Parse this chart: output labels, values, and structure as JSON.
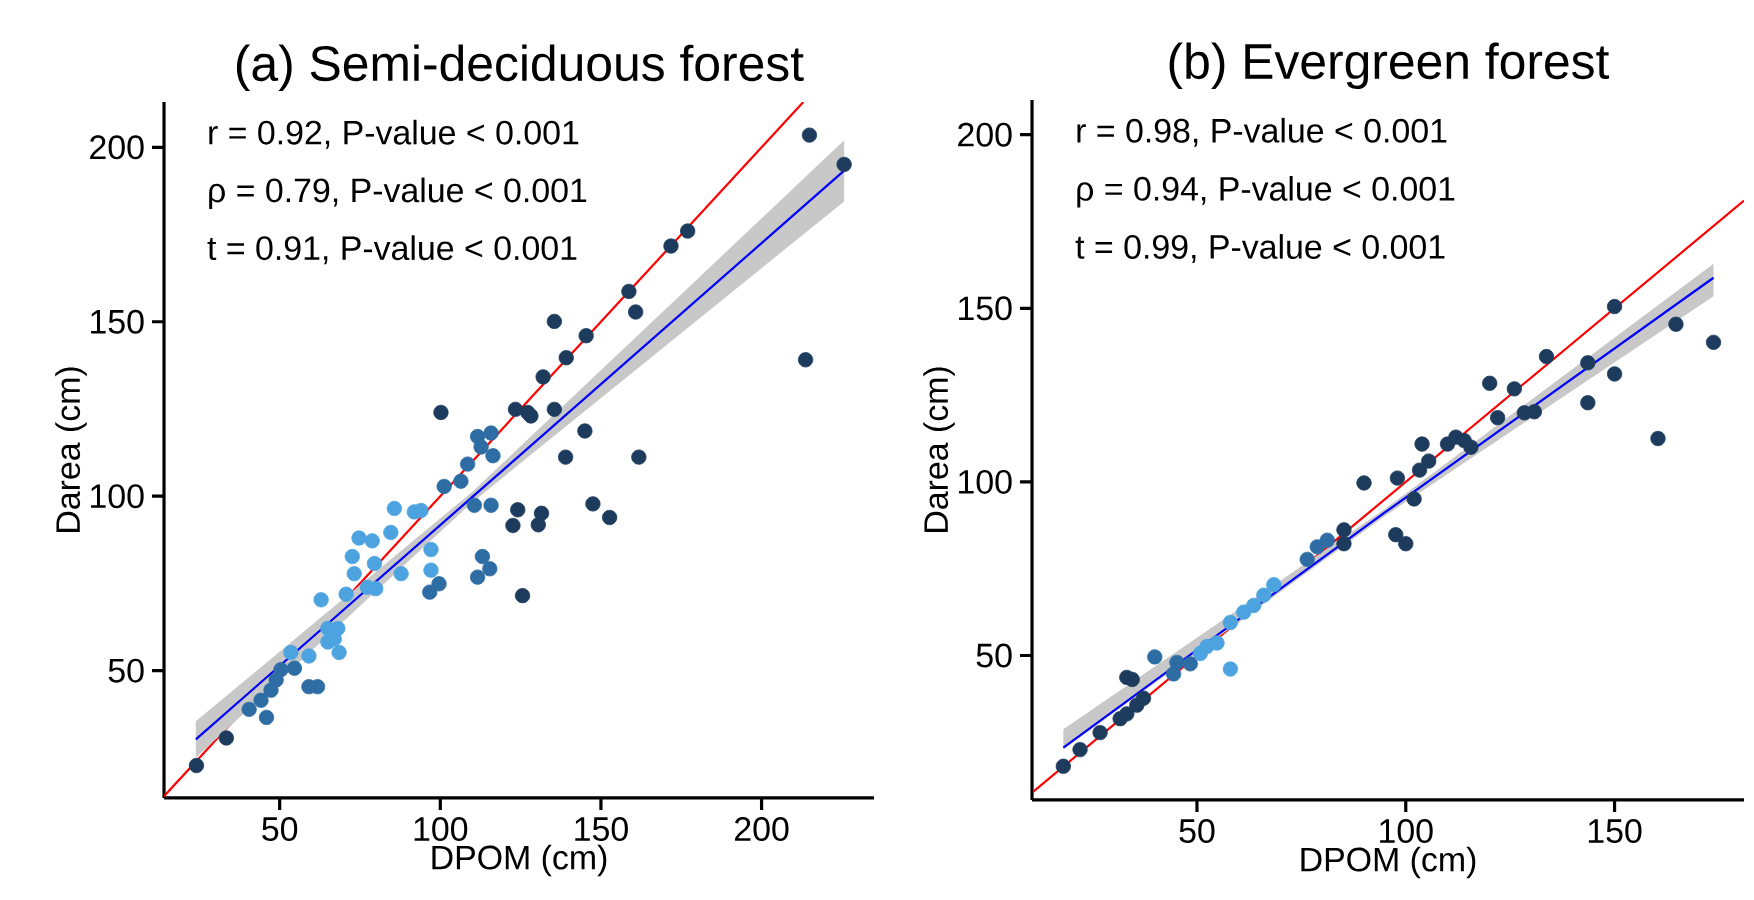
{
  "chart_data": [
    {
      "type": "scatter",
      "title": "(a) Semi-deciduous forest",
      "xlabel": "DPOM (cm)",
      "ylabel": "Darea (cm)",
      "annotations": [
        "r = 0.92, P-value < 0.001",
        "ρ = 0.79, P-value < 0.001",
        "t = 0.91, P-value < 0.001"
      ],
      "xlim": [
        14,
        235
      ],
      "ylim": [
        13.5,
        213
      ],
      "xticks": [
        50,
        100,
        150,
        200
      ],
      "yticks": [
        50,
        100,
        150,
        200
      ],
      "marker": "circle",
      "series": [
        {
          "x": [
            24.1,
            33.4,
            40.5,
            45.9,
            44.2,
            47.3,
            48.9,
            54.6,
            53.5,
            59.1,
            59.1,
            61.8,
            62.9,
            65,
            65,
            67,
            68.5,
            70.7,
            72.6,
            74.7,
            78.8,
            79.5,
            79.9,
            85.7,
            84.6,
            87.8,
            91.9,
            94,
            97.1,
            97.1,
            96.7,
            99.6,
            100.2,
            101.2,
            106.4,
            108.5,
            111.6,
            112.7,
            115.8,
            116.4,
            110.6,
            115.8,
            113.1,
            115.4,
            111.6,
            122.6,
            124.1,
            123.4,
            127.2,
            128.2,
            125.6,
            130.5,
            131.5,
            132,
            135.5,
            135.5,
            139.2,
            139,
            145.4,
            145,
            147.5,
            152.7,
            158.7,
            160.8,
            161.8,
            171.8,
            177,
            213.7,
            214.9,
            225.7,
            73.2,
            77.3,
            68.1,
            50.4
          ],
          "values": [
            22.8,
            30.7,
            38.9,
            36.6,
            41.5,
            44.4,
            47.3,
            50.7,
            55.2,
            54.2,
            45.4,
            45.4,
            70.3,
            62.1,
            58.2,
            59.1,
            55.2,
            71.9,
            82.7,
            88,
            87.2,
            80.7,
            73.5,
            96.5,
            89.6,
            77.8,
            95.5,
            95.9,
            84.7,
            78.8,
            72.5,
            74.9,
            124,
            102.8,
            104.3,
            109.2,
            117.1,
            114.1,
            118.1,
            111.6,
            97.4,
            97.4,
            82.7,
            79.2,
            76.8,
            91.6,
            96.1,
            124.9,
            124,
            123,
            71.5,
            91.8,
            95.1,
            134.2,
            150.1,
            124.9,
            139.7,
            111.2,
            146,
            118.7,
            97.8,
            93.9,
            158.7,
            152.8,
            111.2,
            171.7,
            176,
            139.1,
            203.5,
            195.1,
            77.8,
            73.9,
            62.1,
            50.3
          ],
          "colors": [
            "#1d3b5c",
            "#1d3b5c",
            "#2e6da4",
            "#2e6da4",
            "#2e6da4",
            "#2e6da4",
            "#2e6da4",
            "#2e6da4",
            "#4da3e0",
            "#4da3e0",
            "#2e6da4",
            "#2e6da4",
            "#4da3e0",
            "#4da3e0",
            "#4da3e0",
            "#4da3e0",
            "#4da3e0",
            "#4da3e0",
            "#4da3e0",
            "#4da3e0",
            "#4da3e0",
            "#4da3e0",
            "#4da3e0",
            "#4da3e0",
            "#4da3e0",
            "#4da3e0",
            "#4da3e0",
            "#4da3e0",
            "#4da3e0",
            "#4da3e0",
            "#2e6da4",
            "#2e6da4",
            "#1d3b5c",
            "#2e6da4",
            "#2e6da4",
            "#2e6da4",
            "#2e6da4",
            "#2e6da4",
            "#2e6da4",
            "#2e6da4",
            "#2e6da4",
            "#2e6da4",
            "#2e6da4",
            "#2e6da4",
            "#2e6da4",
            "#1d3b5c",
            "#1d3b5c",
            "#1d3b5c",
            "#1d3b5c",
            "#1d3b5c",
            "#1d3b5c",
            "#1d3b5c",
            "#1d3b5c",
            "#1d3b5c",
            "#1d3b5c",
            "#1d3b5c",
            "#1d3b5c",
            "#1d3b5c",
            "#1d3b5c",
            "#1d3b5c",
            "#1d3b5c",
            "#1d3b5c",
            "#1d3b5c",
            "#1d3b5c",
            "#1d3b5c",
            "#1d3b5c",
            "#1d3b5c",
            "#1d3b5c",
            "#1d3b5c",
            "#1d3b5c",
            "#4da3e0",
            "#4da3e0",
            "#4da3e0",
            "#2e6da4"
          ]
        },
        {
          "type": "line",
          "marker": "none",
          "color": "#ff0000",
          "x": [
            14,
            213
          ],
          "values": [
            14,
            213
          ]
        },
        {
          "type": "line",
          "marker": "none",
          "color": "#0000ff",
          "x": [
            23.9,
            110,
            225.7
          ],
          "values": [
            30.3,
            99.8,
            193.3
          ],
          "lower": [
            25,
            98.3,
            184.5
          ],
          "upper": [
            35.5,
            101.3,
            202
          ]
        }
      ]
    },
    {
      "type": "scatter",
      "title": "(b) Evergreen forest",
      "xlabel": "DPOM (cm)",
      "ylabel": "Darea (cm)",
      "annotations": [
        "r = 0.98, P-value < 0.001",
        "ρ = 0.94, P-value < 0.001",
        "t = 0.99, P-value < 0.001"
      ],
      "xlim": [
        10.5,
        181
      ],
      "ylim": [
        8.4,
        210
      ],
      "xticks": [
        50,
        100,
        150
      ],
      "yticks": [
        50,
        100,
        150,
        200
      ],
      "marker": "circle",
      "series": [
        {
          "x": [
            18,
            22,
            26.8,
            31.6,
            33.2,
            35.6,
            37.2,
            33.2,
            34.5,
            39.9,
            44.4,
            45.2,
            48.4,
            50.8,
            52.4,
            54.8,
            58,
            58,
            61.2,
            63.6,
            66,
            68.4,
            76.4,
            78.8,
            81.2,
            85.2,
            85.2,
            90,
            98,
            97.6,
            100,
            102,
            103.9,
            103.3,
            105.5,
            110,
            112,
            114,
            115.6,
            120.1,
            122,
            126,
            128.4,
            130.8,
            133.7,
            143.6,
            143.6,
            150,
            150,
            160.4,
            164.7,
            173.7
          ],
          "values": [
            18.1,
            22.9,
            27.8,
            31.8,
            33.2,
            35.7,
            37.7,
            43.7,
            43.1,
            49.6,
            44.7,
            48,
            47.6,
            50.6,
            52.6,
            53.6,
            46.1,
            59.5,
            62.5,
            64.4,
            67.4,
            70.4,
            77.7,
            81.3,
            83.2,
            86.2,
            82.2,
            99.7,
            101.1,
            84.8,
            82.2,
            95.1,
            110.9,
            103.4,
            106,
            110.9,
            112.9,
            111.9,
            110,
            128.4,
            118.5,
            126.8,
            119.9,
            120.2,
            136.1,
            134.3,
            122.8,
            150.5,
            131.1,
            112.5,
            145.4,
            140.2
          ],
          "colors": [
            "#1d3b5c",
            "#1d3b5c",
            "#1d3b5c",
            "#1d3b5c",
            "#1d3b5c",
            "#1d3b5c",
            "#1d3b5c",
            "#1d3b5c",
            "#1d3b5c",
            "#2e6da4",
            "#2e6da4",
            "#2e6da4",
            "#2e6da4",
            "#4da3e0",
            "#4da3e0",
            "#4da3e0",
            "#4da3e0",
            "#4da3e0",
            "#4da3e0",
            "#4da3e0",
            "#4da3e0",
            "#4da3e0",
            "#2e6da4",
            "#2e6da4",
            "#2e6da4",
            "#1d3b5c",
            "#1d3b5c",
            "#1d3b5c",
            "#1d3b5c",
            "#1d3b5c",
            "#1d3b5c",
            "#1d3b5c",
            "#1d3b5c",
            "#1d3b5c",
            "#1d3b5c",
            "#1d3b5c",
            "#1d3b5c",
            "#1d3b5c",
            "#1d3b5c",
            "#1d3b5c",
            "#1d3b5c",
            "#1d3b5c",
            "#1d3b5c",
            "#1d3b5c",
            "#1d3b5c",
            "#1d3b5c",
            "#1d3b5c",
            "#1d3b5c",
            "#1d3b5c",
            "#1d3b5c",
            "#1d3b5c",
            "#1d3b5c"
          ]
        },
        {
          "type": "line",
          "marker": "none",
          "color": "#ff0000",
          "x": [
            10.8,
            181
          ],
          "values": [
            10.8,
            181
          ]
        },
        {
          "type": "line",
          "marker": "none",
          "color": "#0000ff",
          "x": [
            18,
            95,
            173.7
          ],
          "values": [
            23.5,
            91.2,
            158.8
          ],
          "lower": [
            22.9,
            90.2,
            153.5
          ],
          "upper": [
            28.8,
            92.2,
            162.8
          ]
        }
      ]
    }
  ]
}
